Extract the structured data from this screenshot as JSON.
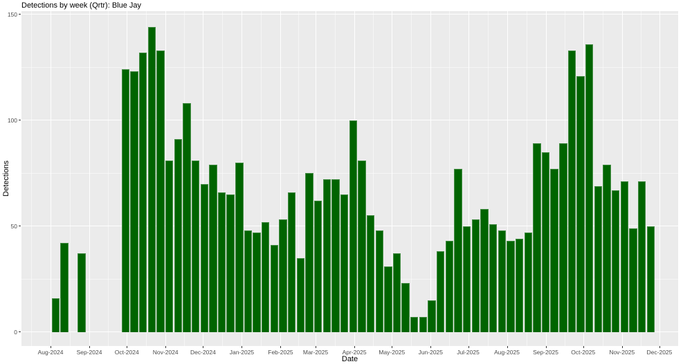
{
  "chart_data": {
    "type": "bar",
    "title": "Detections by week (Qrtr): Blue Jay",
    "xlabel": "Date",
    "ylabel": "Detections",
    "ylim": [
      0,
      150
    ],
    "y_major_ticks": [
      0,
      50,
      100,
      150
    ],
    "y_minor_ticks": [
      25,
      75,
      125
    ],
    "grid": true,
    "legend": false,
    "bar_color": "#006400",
    "panel_background": "#EBEBEB",
    "gridline_color": "#FFFFFF",
    "tick_label_color": "#4d4d4d",
    "x_axis_months": [
      {
        "label": "Aug-2024",
        "date": "2024-08-01"
      },
      {
        "label": "Sep-2024",
        "date": "2024-09-01"
      },
      {
        "label": "Oct-2024",
        "date": "2024-10-01"
      },
      {
        "label": "Nov-2024",
        "date": "2024-11-01"
      },
      {
        "label": "Dec-2024",
        "date": "2024-12-01"
      },
      {
        "label": "Jan-2025",
        "date": "2025-01-01"
      },
      {
        "label": "Feb-2025",
        "date": "2025-02-01"
      },
      {
        "label": "Mar-2025",
        "date": "2025-03-01"
      },
      {
        "label": "Apr-2025",
        "date": "2025-04-01"
      },
      {
        "label": "May-2025",
        "date": "2025-05-01"
      },
      {
        "label": "Jun-2025",
        "date": "2025-06-01"
      },
      {
        "label": "Jul-2025",
        "date": "2025-07-01"
      },
      {
        "label": "Aug-2025",
        "date": "2025-08-01"
      },
      {
        "label": "Sep-2025",
        "date": "2025-09-01"
      },
      {
        "label": "Oct-2025",
        "date": "2025-10-01"
      },
      {
        "label": "Nov-2025",
        "date": "2025-11-01"
      },
      {
        "label": "Dec-2025",
        "date": "2025-12-01"
      }
    ],
    "points": [
      {
        "week_start": "2024-08-05",
        "detections": 16
      },
      {
        "week_start": "2024-08-12",
        "detections": 42
      },
      {
        "week_start": "2024-08-26",
        "detections": 37
      },
      {
        "week_start": "2024-09-30",
        "detections": 124
      },
      {
        "week_start": "2024-10-07",
        "detections": 123
      },
      {
        "week_start": "2024-10-14",
        "detections": 132
      },
      {
        "week_start": "2024-10-21",
        "detections": 144
      },
      {
        "week_start": "2024-10-28",
        "detections": 133
      },
      {
        "week_start": "2024-11-04",
        "detections": 81
      },
      {
        "week_start": "2024-11-11",
        "detections": 91
      },
      {
        "week_start": "2024-11-18",
        "detections": 108
      },
      {
        "week_start": "2024-11-25",
        "detections": 81
      },
      {
        "week_start": "2024-12-02",
        "detections": 70
      },
      {
        "week_start": "2024-12-09",
        "detections": 79
      },
      {
        "week_start": "2024-12-16",
        "detections": 66
      },
      {
        "week_start": "2024-12-23",
        "detections": 65
      },
      {
        "week_start": "2024-12-30",
        "detections": 80
      },
      {
        "week_start": "2025-01-06",
        "detections": 48
      },
      {
        "week_start": "2025-01-13",
        "detections": 47
      },
      {
        "week_start": "2025-01-20",
        "detections": 52
      },
      {
        "week_start": "2025-01-27",
        "detections": 41
      },
      {
        "week_start": "2025-02-03",
        "detections": 53
      },
      {
        "week_start": "2025-02-10",
        "detections": 66
      },
      {
        "week_start": "2025-02-17",
        "detections": 35
      },
      {
        "week_start": "2025-02-24",
        "detections": 75
      },
      {
        "week_start": "2025-03-03",
        "detections": 62
      },
      {
        "week_start": "2025-03-10",
        "detections": 72
      },
      {
        "week_start": "2025-03-17",
        "detections": 72
      },
      {
        "week_start": "2025-03-24",
        "detections": 65
      },
      {
        "week_start": "2025-03-31",
        "detections": 100
      },
      {
        "week_start": "2025-04-07",
        "detections": 81
      },
      {
        "week_start": "2025-04-14",
        "detections": 55
      },
      {
        "week_start": "2025-04-21",
        "detections": 48
      },
      {
        "week_start": "2025-04-28",
        "detections": 31
      },
      {
        "week_start": "2025-05-05",
        "detections": 37
      },
      {
        "week_start": "2025-05-12",
        "detections": 23
      },
      {
        "week_start": "2025-05-19",
        "detections": 7
      },
      {
        "week_start": "2025-05-26",
        "detections": 7
      },
      {
        "week_start": "2025-06-02",
        "detections": 15
      },
      {
        "week_start": "2025-06-09",
        "detections": 38
      },
      {
        "week_start": "2025-06-16",
        "detections": 43
      },
      {
        "week_start": "2025-06-23",
        "detections": 77
      },
      {
        "week_start": "2025-06-30",
        "detections": 50
      },
      {
        "week_start": "2025-07-07",
        "detections": 53
      },
      {
        "week_start": "2025-07-14",
        "detections": 58
      },
      {
        "week_start": "2025-07-21",
        "detections": 51
      },
      {
        "week_start": "2025-07-28",
        "detections": 48
      },
      {
        "week_start": "2025-08-04",
        "detections": 43
      },
      {
        "week_start": "2025-08-11",
        "detections": 44
      },
      {
        "week_start": "2025-08-18",
        "detections": 47
      },
      {
        "week_start": "2025-08-25",
        "detections": 89
      },
      {
        "week_start": "2025-09-01",
        "detections": 85
      },
      {
        "week_start": "2025-09-08",
        "detections": 77
      },
      {
        "week_start": "2025-09-15",
        "detections": 89
      },
      {
        "week_start": "2025-09-22",
        "detections": 133
      },
      {
        "week_start": "2025-09-29",
        "detections": 121
      },
      {
        "week_start": "2025-10-06",
        "detections": 136
      },
      {
        "week_start": "2025-10-13",
        "detections": 69
      },
      {
        "week_start": "2025-10-20",
        "detections": 79
      },
      {
        "week_start": "2025-10-27",
        "detections": 67
      },
      {
        "week_start": "2025-11-03",
        "detections": 71
      },
      {
        "week_start": "2025-11-10",
        "detections": 49
      },
      {
        "week_start": "2025-11-17",
        "detections": 71
      },
      {
        "week_start": "2025-11-24",
        "detections": 50
      }
    ]
  }
}
